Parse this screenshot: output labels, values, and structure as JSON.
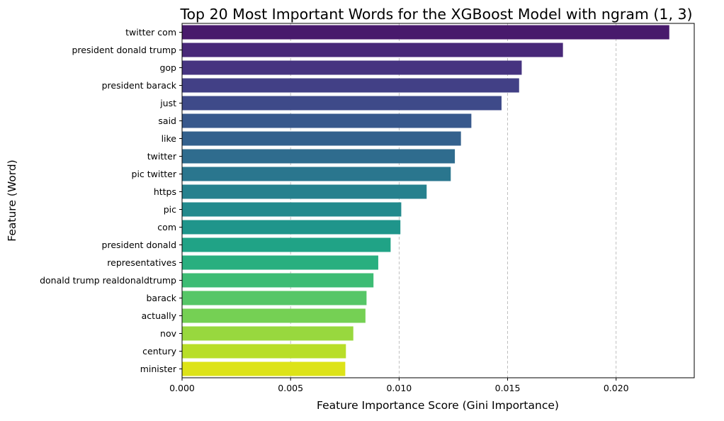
{
  "chart_data": {
    "type": "bar",
    "orientation": "horizontal",
    "title": "Top 20 Most Important Words for the XGBoost Model with ngram (1, 3)",
    "xlabel": "Feature Importance Score (Gini Importance)",
    "ylabel": "Feature (Word)",
    "xlim": [
      0,
      0.0236
    ],
    "xticks": [
      0.0,
      0.005,
      0.01,
      0.015,
      0.02
    ],
    "xtick_labels": [
      "0.000",
      "0.005",
      "0.010",
      "0.015",
      "0.020"
    ],
    "grid": "x-axis, dashed",
    "palette": "viridis",
    "categories": [
      "twitter com",
      "president donald trump",
      "gop",
      "president barack",
      "just",
      "said",
      "like",
      "twitter",
      "pic twitter",
      "https",
      "pic",
      "com",
      "president donald",
      "representatives",
      "donald trump realdonaldtrump",
      "barack",
      "actually",
      "nov",
      "century",
      "minister"
    ],
    "values": [
      0.02245,
      0.01755,
      0.01565,
      0.01553,
      0.01472,
      0.01333,
      0.01285,
      0.01257,
      0.01238,
      0.01127,
      0.0101,
      0.01006,
      0.00961,
      0.00904,
      0.00882,
      0.0085,
      0.00845,
      0.00789,
      0.00755,
      0.00752
    ],
    "colors": [
      "#481a6c",
      "#482878",
      "#463480",
      "#424086",
      "#3e4a89",
      "#38588c",
      "#34618d",
      "#2f6c8e",
      "#2a768e",
      "#26818e",
      "#238a8d",
      "#1f958b",
      "#20a386",
      "#29af7f",
      "#3dbc74",
      "#56c667",
      "#75d054",
      "#98d83e",
      "#b8de29",
      "#dde318"
    ]
  }
}
